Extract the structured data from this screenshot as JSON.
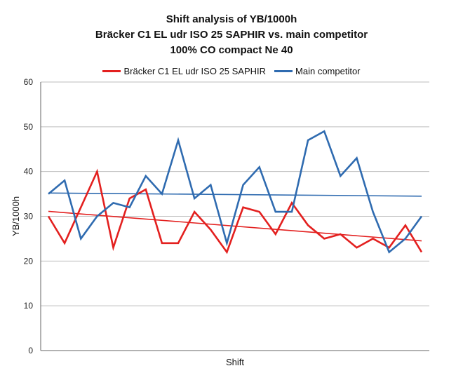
{
  "chart_data": {
    "type": "line",
    "title": [
      "Shift analysis of YB/1000h",
      "Bräcker C1 EL udr ISO 25 SAPHIR vs. main competitor",
      "100% CO compact Ne 40"
    ],
    "xlabel": "Shift",
    "ylabel": "YB/1000h",
    "ylim": [
      0,
      60
    ],
    "yticks": [
      0,
      10,
      20,
      30,
      40,
      50,
      60
    ],
    "grid": true,
    "legend_position": "top",
    "x": [
      1,
      2,
      3,
      4,
      5,
      6,
      7,
      8,
      9,
      10,
      11,
      12,
      13,
      14,
      15,
      16,
      17,
      18,
      19,
      20,
      21,
      22,
      23,
      24
    ],
    "series": [
      {
        "name": "Bräcker C1 EL udr ISO 25 SAPHIR",
        "color": "#e3201f",
        "values": [
          30,
          24,
          32,
          40,
          23,
          34,
          36,
          24,
          24,
          31,
          27,
          22,
          32,
          31,
          26,
          33,
          28,
          25,
          26,
          23,
          25,
          23,
          28,
          22
        ],
        "trend": [
          31.1,
          24.5
        ]
      },
      {
        "name": "Main competitor",
        "color": "#2f6bb0",
        "values": [
          35,
          38,
          25,
          30,
          33,
          32,
          39,
          35,
          47,
          34,
          37,
          24,
          37,
          41,
          31,
          31,
          47,
          49,
          39,
          43,
          31,
          22,
          25,
          30
        ],
        "trend": [
          35.2,
          34.5
        ]
      }
    ]
  }
}
